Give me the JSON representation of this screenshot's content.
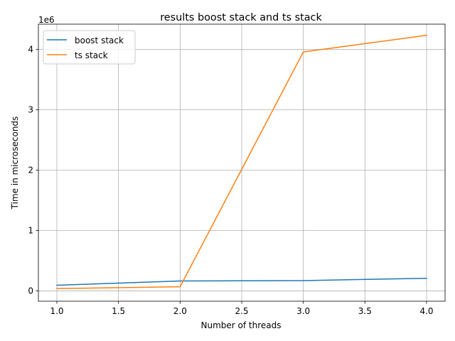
{
  "chart_data": {
    "type": "line",
    "title": "results boost stack and ts stack",
    "xlabel": "Number of threads",
    "ylabel": "Time in microseconds",
    "y_offset_label": "1e6",
    "x": [
      1.0,
      2.0,
      3.0,
      4.0
    ],
    "xlim": [
      0.85,
      4.15
    ],
    "ylim": [
      -170000,
      4420000
    ],
    "x_ticks": [
      1.0,
      1.5,
      2.0,
      2.5,
      3.0,
      3.5,
      4.0
    ],
    "x_tick_labels": [
      "1.0",
      "1.5",
      "2.0",
      "2.5",
      "3.0",
      "3.5",
      "4.0"
    ],
    "y_ticks": [
      0,
      1000000,
      2000000,
      3000000,
      4000000
    ],
    "y_tick_labels": [
      "0",
      "1",
      "2",
      "3",
      "4"
    ],
    "grid": true,
    "legend_position": "top-left",
    "series": [
      {
        "name": "boost stack",
        "color": "#1f77b4",
        "values": [
          95000,
          165000,
          172000,
          210000
        ]
      },
      {
        "name": "ts stack",
        "color": "#ff7f0e",
        "values": [
          40000,
          70000,
          3960000,
          4235000
        ]
      }
    ]
  }
}
